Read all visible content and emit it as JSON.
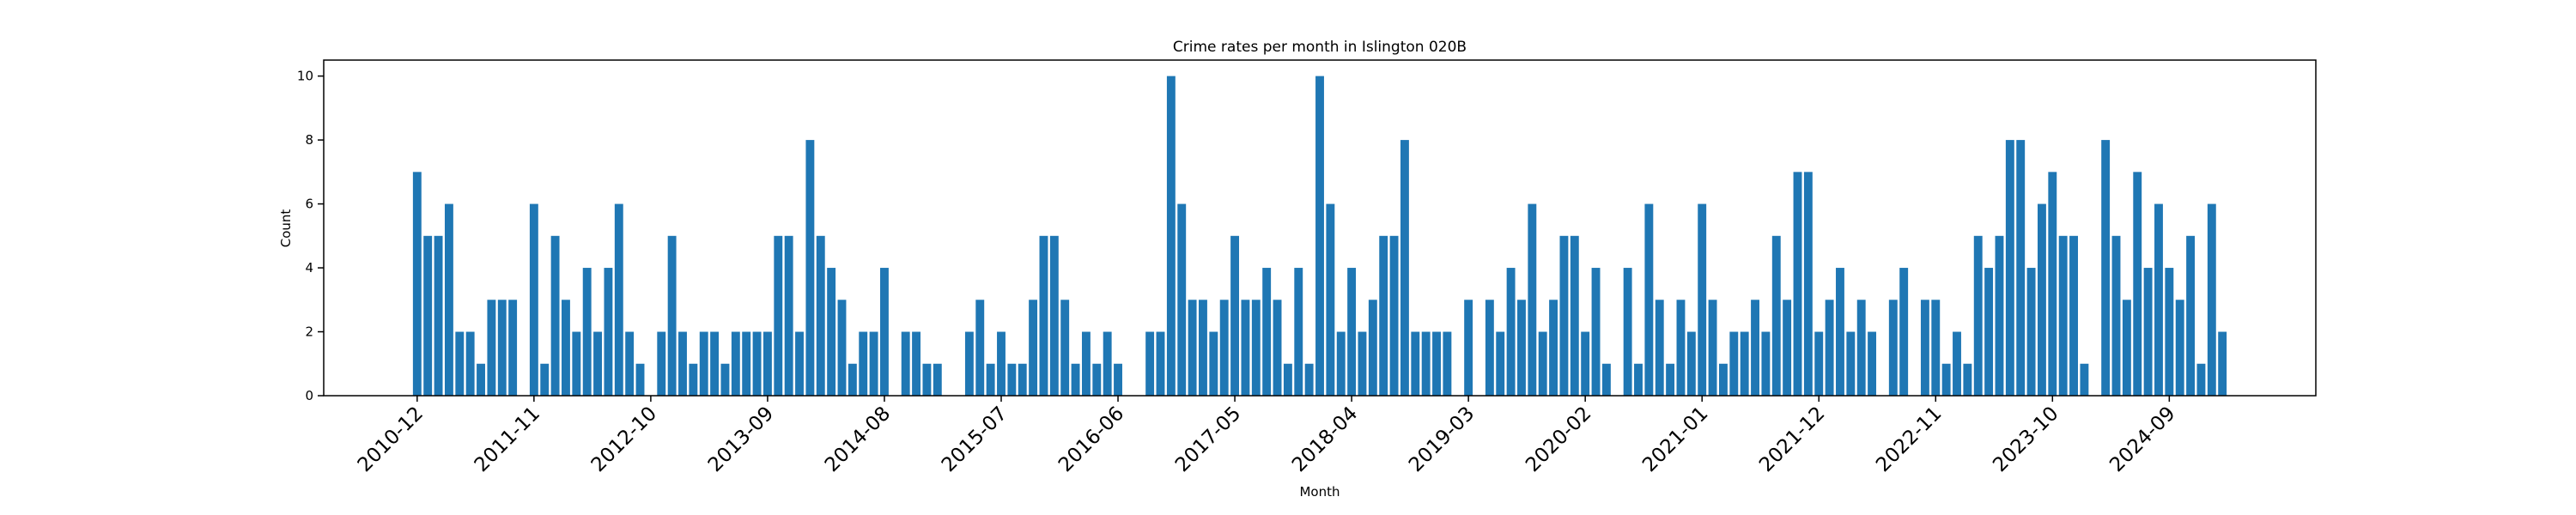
{
  "chart_data": {
    "type": "bar",
    "title": "Crime rates per month in Islington 020B",
    "x_label": "Month",
    "y_label": "Count",
    "color": "#1f77b4",
    "categories": [
      "2010-12",
      null,
      null,
      null,
      null,
      null,
      null,
      null,
      null,
      null,
      null,
      "2011-11",
      null,
      null,
      null,
      null,
      null,
      null,
      null,
      null,
      null,
      null,
      "2012-10",
      null,
      null,
      null,
      null,
      null,
      null,
      null,
      null,
      null,
      null,
      "2013-09",
      null,
      null,
      null,
      null,
      null,
      null,
      null,
      null,
      null,
      null,
      "2014-08",
      null,
      null,
      null,
      null,
      null,
      null,
      null,
      null,
      null,
      null,
      "2015-07",
      null,
      null,
      null,
      null,
      null,
      null,
      null,
      null,
      null,
      null,
      "2016-06",
      null,
      null,
      null,
      null,
      null,
      null,
      null,
      null,
      null,
      null,
      "2017-05",
      null,
      null,
      null,
      null,
      null,
      null,
      null,
      null,
      null,
      null,
      "2018-04",
      null,
      null,
      null,
      null,
      null,
      null,
      null,
      null,
      null,
      null,
      "2019-03",
      null,
      null,
      null,
      null,
      null,
      null,
      null,
      null,
      null,
      null,
      "2020-02",
      null,
      null,
      null,
      null,
      null,
      null,
      null,
      null,
      null,
      null,
      "2021-01",
      null,
      null,
      null,
      null,
      null,
      null,
      null,
      null,
      null,
      null,
      "2021-12",
      null,
      null,
      null,
      null,
      null,
      null,
      null,
      null,
      null,
      null,
      "2022-11",
      null,
      null,
      null,
      null,
      null,
      null,
      null,
      null,
      null,
      null,
      "2023-10",
      null,
      null,
      null,
      null,
      null,
      null,
      null,
      null,
      null,
      null,
      "2024-09",
      null,
      null,
      null,
      null,
      null
    ],
    "values": [
      7,
      5,
      5,
      6,
      2,
      2,
      1,
      3,
      3,
      3,
      null,
      6,
      1,
      5,
      3,
      2,
      4,
      2,
      4,
      6,
      2,
      1,
      null,
      2,
      5,
      2,
      1,
      2,
      2,
      1,
      2,
      2,
      2,
      2,
      5,
      5,
      2,
      8,
      5,
      4,
      3,
      1,
      2,
      2,
      4,
      null,
      2,
      2,
      1,
      1,
      null,
      null,
      2,
      3,
      1,
      2,
      1,
      1,
      3,
      5,
      5,
      3,
      1,
      2,
      1,
      2,
      1,
      null,
      null,
      2,
      2,
      10,
      6,
      3,
      3,
      2,
      3,
      5,
      3,
      3,
      4,
      3,
      1,
      4,
      1,
      10,
      6,
      2,
      4,
      2,
      3,
      5,
      5,
      8,
      2,
      2,
      2,
      2,
      null,
      3,
      null,
      3,
      2,
      4,
      3,
      6,
      2,
      3,
      5,
      5,
      2,
      4,
      1,
      null,
      4,
      1,
      6,
      3,
      1,
      3,
      2,
      6,
      3,
      1,
      2,
      2,
      3,
      2,
      5,
      3,
      7,
      7,
      2,
      3,
      4,
      2,
      3,
      2,
      null,
      3,
      4,
      null,
      3,
      3,
      1,
      2,
      1,
      5,
      4,
      5,
      8,
      8,
      4,
      6,
      7,
      5,
      5,
      1,
      null,
      8,
      5,
      3,
      7,
      4,
      6,
      4,
      3,
      5,
      1,
      6,
      2
    ],
    "ylim": [
      0,
      10.5
    ],
    "yticks": [
      0,
      2,
      4,
      6,
      8,
      10
    ]
  }
}
